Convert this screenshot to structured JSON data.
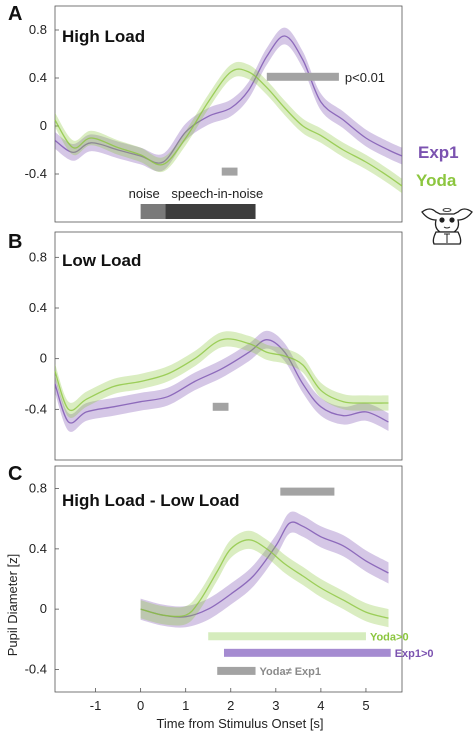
{
  "chart_data": [
    {
      "type": "line",
      "panel_letter": "A",
      "title": "High Load",
      "xlim": [
        -1.9,
        5.8
      ],
      "ylim": [
        -0.8,
        1.0
      ],
      "yticks": [
        0.8,
        0.4,
        0,
        -0.4
      ],
      "ytick_labels": [
        "0.8",
        "0.4",
        "0",
        "-0.4"
      ],
      "series": [
        {
          "name": "Exp1",
          "color": "#7b52b0",
          "x": [
            -1.9,
            -1.5,
            -1.1,
            -0.5,
            0.0,
            0.5,
            1.0,
            1.5,
            2.0,
            2.4,
            2.8,
            3.2,
            3.6,
            4.0,
            4.5,
            5.0,
            5.5,
            5.8
          ],
          "y": [
            -0.12,
            -0.22,
            -0.14,
            -0.2,
            -0.25,
            -0.3,
            -0.05,
            0.08,
            0.15,
            0.3,
            0.58,
            0.75,
            0.55,
            0.2,
            0.05,
            -0.1,
            -0.2,
            -0.25
          ],
          "band": 0.07
        },
        {
          "name": "Yoda",
          "color": "#8cc63f",
          "x": [
            -1.9,
            -1.5,
            -1.1,
            -0.5,
            0.0,
            0.5,
            1.0,
            1.5,
            2.0,
            2.4,
            2.8,
            3.2,
            3.6,
            4.0,
            4.5,
            5.0,
            5.5,
            5.8
          ],
          "y": [
            0.05,
            -0.18,
            -0.1,
            -0.18,
            -0.24,
            -0.32,
            -0.1,
            0.2,
            0.45,
            0.45,
            0.32,
            0.15,
            0.0,
            -0.08,
            -0.2,
            -0.3,
            -0.42,
            -0.5
          ],
          "band": 0.06
        }
      ],
      "sig_bars": [
        {
          "x": [
            2.8,
            4.4
          ],
          "y": 0.41,
          "color": "#a3a3a3",
          "label": "p<0.01"
        },
        {
          "x": [
            1.8,
            2.15
          ],
          "y": -0.38,
          "color": "#a3a3a3",
          "label": ""
        }
      ],
      "stim_bars": [
        {
          "x": [
            0.0,
            0.55
          ],
          "y": -0.83,
          "color": "#7a7a7a",
          "label": "noise"
        },
        {
          "x": [
            0.55,
            2.55
          ],
          "y": -0.83,
          "color": "#3d3d3d",
          "label": "speech-in-noise"
        }
      ]
    },
    {
      "type": "line",
      "panel_letter": "B",
      "title": "Low Load",
      "xlim": [
        -1.9,
        5.8
      ],
      "ylim": [
        -0.8,
        1.0
      ],
      "yticks": [
        0.8,
        0.4,
        0,
        -0.4
      ],
      "ytick_labels": [
        "0.8",
        "0.4",
        "0",
        "-0.4"
      ],
      "series": [
        {
          "name": "Exp1",
          "color": "#7b52b0",
          "x": [
            -1.9,
            -1.6,
            -1.2,
            -0.6,
            0.0,
            0.6,
            1.2,
            1.8,
            2.4,
            2.8,
            3.2,
            3.6,
            4.0,
            4.5,
            5.0,
            5.5
          ],
          "y": [
            -0.2,
            -0.5,
            -0.42,
            -0.38,
            -0.34,
            -0.3,
            -0.18,
            -0.08,
            0.05,
            0.15,
            0.05,
            -0.2,
            -0.38,
            -0.45,
            -0.42,
            -0.5
          ],
          "band": 0.07
        },
        {
          "name": "Yoda",
          "color": "#8cc63f",
          "x": [
            -1.9,
            -1.6,
            -1.2,
            -0.6,
            0.0,
            0.6,
            1.2,
            1.8,
            2.4,
            2.8,
            3.2,
            3.6,
            4.0,
            4.5,
            5.0,
            5.5
          ],
          "y": [
            -0.1,
            -0.4,
            -0.32,
            -0.22,
            -0.18,
            -0.12,
            0.0,
            0.15,
            0.12,
            0.05,
            0.02,
            -0.05,
            -0.25,
            -0.34,
            -0.35,
            -0.35
          ],
          "band": 0.06
        }
      ],
      "sig_bars": [
        {
          "x": [
            1.6,
            1.95
          ],
          "y": -0.38,
          "color": "#a3a3a3",
          "label": ""
        }
      ],
      "stim_bars": []
    },
    {
      "type": "line",
      "panel_letter": "C",
      "title": "High Load - Low Load",
      "ylabel": "Pupil Diameter  [z]",
      "xlabel": "Time from Stimulus Onset [s]",
      "xlim": [
        -1.9,
        5.8
      ],
      "ylim": [
        -0.55,
        0.95
      ],
      "xticks": [
        -1,
        0,
        1,
        2,
        3,
        4,
        5
      ],
      "xtick_labels": [
        "-1",
        "0",
        "1",
        "2",
        "3",
        "4",
        "5"
      ],
      "yticks": [
        0.8,
        0.4,
        0,
        -0.4
      ],
      "ytick_labels": [
        "0.8",
        "0.4",
        "0",
        "-0.4"
      ],
      "series": [
        {
          "name": "Exp1",
          "color": "#7b52b0",
          "x": [
            0.0,
            0.5,
            1.0,
            1.5,
            2.0,
            2.5,
            3.0,
            3.3,
            3.6,
            4.0,
            4.5,
            5.0,
            5.5
          ],
          "y": [
            0.0,
            -0.04,
            -0.05,
            0.0,
            0.1,
            0.22,
            0.42,
            0.57,
            0.55,
            0.48,
            0.42,
            0.32,
            0.24
          ],
          "band": 0.07
        },
        {
          "name": "Yoda",
          "color": "#8cc63f",
          "x": [
            0.0,
            0.5,
            1.0,
            1.3,
            1.7,
            2.0,
            2.4,
            2.8,
            3.2,
            3.6,
            4.0,
            4.5,
            5.0,
            5.5
          ],
          "y": [
            0.0,
            -0.04,
            -0.04,
            0.05,
            0.25,
            0.4,
            0.46,
            0.4,
            0.3,
            0.22,
            0.14,
            0.06,
            -0.02,
            -0.06
          ],
          "band": 0.06
        }
      ],
      "sig_bars": [
        {
          "x": [
            3.1,
            4.3
          ],
          "y": 0.78,
          "color": "#a3a3a3",
          "label": ""
        },
        {
          "x": [
            1.5,
            5.0
          ],
          "y": -0.18,
          "color": "#d5ecbd",
          "label": "Yoda>0",
          "label_color": "#8cc63f"
        },
        {
          "x": [
            1.85,
            5.55
          ],
          "y": -0.29,
          "color": "#a58bd1",
          "label": "Exp1>0",
          "label_color": "#7b52b0"
        },
        {
          "x": [
            1.7,
            2.55
          ],
          "y": -0.41,
          "color": "#a3a3a3",
          "label": "Yoda≠ Exp1",
          "label_color": "#8a8a8a"
        }
      ],
      "stim_bars": []
    }
  ],
  "legend": {
    "exp1_label": "Exp1",
    "yoda_label": "Yoda",
    "exp1_color": "#7b52b0",
    "yoda_color": "#8cc63f"
  },
  "icons": {
    "mascot": "yoda-figure-icon"
  }
}
